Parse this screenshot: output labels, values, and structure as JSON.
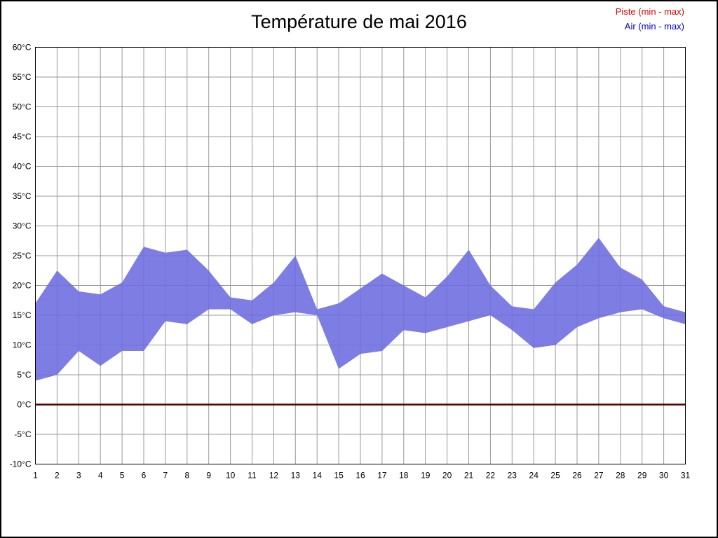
{
  "title": "Température de mai 2016",
  "legend": [
    {
      "label": "Piste (min - max)",
      "color": "#e00000"
    },
    {
      "label": "Air (min - max)",
      "color": "#0000dd"
    }
  ],
  "chart_data": {
    "type": "area",
    "title": "Température de mai 2016",
    "xlabel": "",
    "ylabel": "",
    "x": [
      1,
      2,
      3,
      4,
      5,
      6,
      7,
      8,
      9,
      10,
      11,
      12,
      13,
      14,
      15,
      16,
      17,
      18,
      19,
      20,
      21,
      22,
      23,
      24,
      25,
      26,
      27,
      28,
      29,
      30,
      31
    ],
    "series": [
      {
        "name": "Air min",
        "values": [
          4,
          5,
          9,
          6.5,
          9,
          9,
          14,
          13.5,
          16,
          16,
          13.5,
          15,
          15.5,
          15,
          6,
          8.5,
          9,
          12.5,
          12,
          13,
          14,
          15,
          12.5,
          9.5,
          10,
          13,
          14.5,
          15.5,
          16,
          14.5,
          13.5
        ]
      },
      {
        "name": "Air max",
        "values": [
          17,
          22.5,
          19,
          18.5,
          20.5,
          26.5,
          25.5,
          26,
          22.5,
          18,
          17.5,
          20.5,
          25,
          16,
          17,
          19.5,
          22,
          20,
          18,
          21.5,
          26,
          20,
          16.5,
          16,
          20.5,
          23.5,
          28,
          23,
          21,
          16.5,
          15.5
        ]
      },
      {
        "name": "Piste (min - max)",
        "values": [
          0,
          0,
          0,
          0,
          0,
          0,
          0,
          0,
          0,
          0,
          0,
          0,
          0,
          0,
          0,
          0,
          0,
          0,
          0,
          0,
          0,
          0,
          0,
          0,
          0,
          0,
          0,
          0,
          0,
          0,
          0
        ]
      }
    ],
    "ylim": [
      -10,
      60
    ],
    "ytick_step": 5,
    "yticks": [
      {
        "value": -10,
        "label": "-10°C"
      },
      {
        "value": -5,
        "label": "-5°C"
      },
      {
        "value": 0,
        "label": "0°C"
      },
      {
        "value": 5,
        "label": "5°C"
      },
      {
        "value": 10,
        "label": "10°C"
      },
      {
        "value": 15,
        "label": "15°C"
      },
      {
        "value": 20,
        "label": "20°C"
      },
      {
        "value": 25,
        "label": "25°C"
      },
      {
        "value": 30,
        "label": "30°C"
      },
      {
        "value": 35,
        "label": "35°C"
      },
      {
        "value": 40,
        "label": "40°C"
      },
      {
        "value": 45,
        "label": "45°C"
      },
      {
        "value": 50,
        "label": "50°C"
      },
      {
        "value": 55,
        "label": "55°C"
      },
      {
        "value": 60,
        "label": "60°C"
      }
    ],
    "grid": true,
    "legend_position": "top-right",
    "colors": {
      "air_band": "#6b6bdf",
      "piste_line": "#500000",
      "grid": "#999999",
      "axis": "#000000",
      "background": "#ffffff"
    }
  }
}
